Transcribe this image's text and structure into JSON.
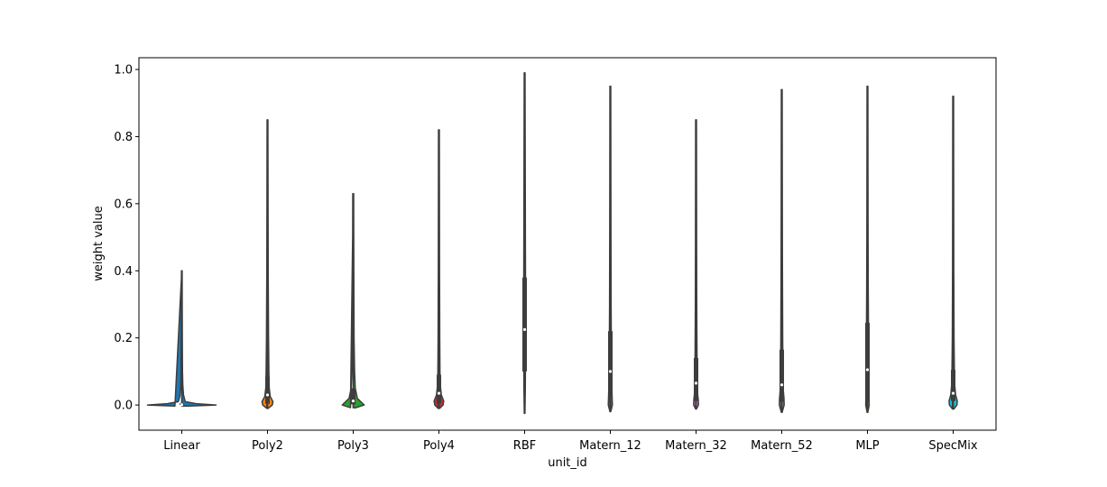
{
  "chart_data": {
    "type": "violin",
    "title": "",
    "xlabel": "unit_id",
    "ylabel": "weight value",
    "ylim": [
      -0.075,
      1.035
    ],
    "y_ticks": [
      0.0,
      0.2,
      0.4,
      0.6,
      0.8,
      1.0
    ],
    "y_tick_labels": [
      "0.0",
      "0.2",
      "0.4",
      "0.6",
      "0.8",
      "1.0"
    ],
    "grid": false,
    "categories": [
      "Linear",
      "Poly2",
      "Poly3",
      "Poly4",
      "RBF",
      "Matern_12",
      "Matern_32",
      "Matern_52",
      "MLP",
      "SpecMix"
    ],
    "colors": [
      "#1f77b4",
      "#ff7f0e",
      "#2ca02c",
      "#d62728",
      "#9467bd",
      "#8c564b",
      "#e377c2",
      "#7f7f7f",
      "#bcbd22",
      "#17becf"
    ],
    "series": [
      {
        "category": "Linear",
        "min": -0.003,
        "max": 0.4,
        "q1": 0.0,
        "median": 0.001,
        "q3": 0.005,
        "whisker_high": 0.03,
        "profile": [
          [
            -0.003,
            0.2
          ],
          [
            0.0,
            1.0
          ],
          [
            0.004,
            0.42
          ],
          [
            0.01,
            0.1
          ],
          [
            0.03,
            0.05
          ],
          [
            0.06,
            0.03
          ],
          [
            0.1,
            0.02
          ],
          [
            0.2,
            0.015
          ],
          [
            0.3,
            0.012
          ],
          [
            0.4,
            0.01
          ]
        ]
      },
      {
        "category": "Poly2",
        "min": -0.01,
        "max": 0.85,
        "q1": 0.004,
        "median": 0.03,
        "q3": 0.085,
        "whisker_high": 0.17,
        "profile": [
          [
            -0.01,
            0.02
          ],
          [
            0.0,
            0.14
          ],
          [
            0.01,
            0.16
          ],
          [
            0.025,
            0.08
          ],
          [
            0.05,
            0.05
          ],
          [
            0.1,
            0.04
          ],
          [
            0.2,
            0.03
          ],
          [
            0.4,
            0.02
          ],
          [
            0.6,
            0.016
          ],
          [
            0.85,
            0.012
          ]
        ]
      },
      {
        "category": "Poly3",
        "min": -0.008,
        "max": 0.63,
        "q1": 0.002,
        "median": 0.012,
        "q3": 0.05,
        "whisker_high": 0.11,
        "profile": [
          [
            -0.008,
            0.08
          ],
          [
            0.0,
            0.32
          ],
          [
            0.008,
            0.24
          ],
          [
            0.02,
            0.12
          ],
          [
            0.05,
            0.06
          ],
          [
            0.1,
            0.04
          ],
          [
            0.2,
            0.025
          ],
          [
            0.4,
            0.018
          ],
          [
            0.63,
            0.013
          ]
        ]
      },
      {
        "category": "Poly4",
        "min": -0.01,
        "max": 0.82,
        "q1": 0.005,
        "median": 0.035,
        "q3": 0.09,
        "whisker_high": 0.2,
        "profile": [
          [
            -0.01,
            0.02
          ],
          [
            0.0,
            0.12
          ],
          [
            0.012,
            0.14
          ],
          [
            0.03,
            0.07
          ],
          [
            0.06,
            0.04
          ],
          [
            0.1,
            0.03
          ],
          [
            0.2,
            0.024
          ],
          [
            0.4,
            0.018
          ],
          [
            0.6,
            0.015
          ],
          [
            0.82,
            0.012
          ]
        ]
      },
      {
        "category": "RBF",
        "min": -0.025,
        "max": 0.99,
        "q1": 0.1,
        "median": 0.225,
        "q3": 0.38,
        "whisker_high": 0.77,
        "profile": [
          [
            -0.025,
            0.01
          ],
          [
            0.05,
            0.02
          ],
          [
            0.15,
            0.025
          ],
          [
            0.25,
            0.028
          ],
          [
            0.35,
            0.026
          ],
          [
            0.5,
            0.022
          ],
          [
            0.7,
            0.018
          ],
          [
            0.85,
            0.015
          ],
          [
            0.99,
            0.012
          ]
        ]
      },
      {
        "category": "Matern_12",
        "min": -0.02,
        "max": 0.95,
        "q1": 0.03,
        "median": 0.1,
        "q3": 0.22,
        "whisker_high": 0.47,
        "profile": [
          [
            -0.02,
            0.01
          ],
          [
            0.0,
            0.06
          ],
          [
            0.03,
            0.05
          ],
          [
            0.08,
            0.035
          ],
          [
            0.15,
            0.03
          ],
          [
            0.3,
            0.022
          ],
          [
            0.5,
            0.018
          ],
          [
            0.7,
            0.015
          ],
          [
            0.95,
            0.012
          ]
        ]
      },
      {
        "category": "Matern_32",
        "min": -0.012,
        "max": 0.85,
        "q1": 0.012,
        "median": 0.065,
        "q3": 0.14,
        "whisker_high": 0.3,
        "profile": [
          [
            -0.012,
            0.01
          ],
          [
            0.0,
            0.07
          ],
          [
            0.015,
            0.065
          ],
          [
            0.04,
            0.04
          ],
          [
            0.08,
            0.035
          ],
          [
            0.15,
            0.028
          ],
          [
            0.3,
            0.02
          ],
          [
            0.5,
            0.016
          ],
          [
            0.85,
            0.012
          ]
        ]
      },
      {
        "category": "Matern_52",
        "min": -0.022,
        "max": 0.94,
        "q1": 0.01,
        "median": 0.06,
        "q3": 0.165,
        "whisker_high": 0.32,
        "profile": [
          [
            -0.022,
            0.01
          ],
          [
            0.0,
            0.07
          ],
          [
            0.02,
            0.065
          ],
          [
            0.05,
            0.04
          ],
          [
            0.1,
            0.033
          ],
          [
            0.2,
            0.027
          ],
          [
            0.4,
            0.02
          ],
          [
            0.6,
            0.016
          ],
          [
            0.94,
            0.012
          ]
        ]
      },
      {
        "category": "MLP",
        "min": -0.022,
        "max": 0.95,
        "q1": 0.01,
        "median": 0.105,
        "q3": 0.245,
        "whisker_high": 0.5,
        "profile": [
          [
            -0.022,
            0.01
          ],
          [
            0.0,
            0.05
          ],
          [
            0.05,
            0.04
          ],
          [
            0.1,
            0.035
          ],
          [
            0.2,
            0.03
          ],
          [
            0.35,
            0.022
          ],
          [
            0.5,
            0.018
          ],
          [
            0.7,
            0.015
          ],
          [
            0.95,
            0.012
          ]
        ]
      },
      {
        "category": "SpecMix",
        "min": -0.012,
        "max": 0.92,
        "q1": 0.012,
        "median": 0.035,
        "q3": 0.105,
        "whisker_high": 0.21,
        "profile": [
          [
            -0.012,
            0.02
          ],
          [
            0.0,
            0.11
          ],
          [
            0.012,
            0.12
          ],
          [
            0.03,
            0.07
          ],
          [
            0.06,
            0.045
          ],
          [
            0.1,
            0.035
          ],
          [
            0.2,
            0.025
          ],
          [
            0.4,
            0.018
          ],
          [
            0.7,
            0.014
          ],
          [
            0.92,
            0.012
          ]
        ]
      }
    ]
  }
}
